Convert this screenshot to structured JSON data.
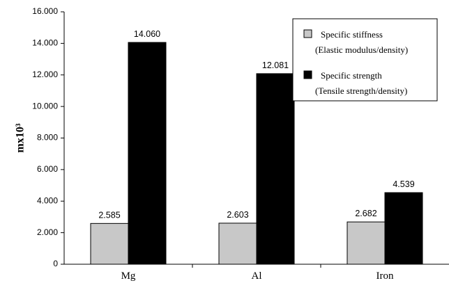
{
  "chart_data": {
    "type": "bar",
    "categories": [
      "Mg",
      "Al",
      "Iron"
    ],
    "series": [
      {
        "name": "Specific stiffness",
        "name_note": "(Elastic modulus/density)",
        "values": [
          2.585,
          2.603,
          2.682
        ],
        "labels": [
          "2.585",
          "2.603",
          "2.682"
        ],
        "color": "#c8c8c8"
      },
      {
        "name": "Specific strength",
        "name_note": "(Tensile strength/density)",
        "values": [
          14.06,
          12.081,
          4.539
        ],
        "labels": [
          "14.060",
          "12.081",
          "4.539"
        ],
        "color": "#000000"
      }
    ],
    "ylabel": "mx10³",
    "ylim": [
      0,
      16
    ],
    "yticks": [
      0,
      2,
      4,
      6,
      8,
      10,
      12,
      14,
      16
    ],
    "ytick_labels": [
      "0",
      "2.000",
      "4.000",
      "6.000",
      "8.000",
      "10.000",
      "12.000",
      "14.000",
      "16.000"
    ],
    "legend_position": "top-right",
    "grid": false
  }
}
